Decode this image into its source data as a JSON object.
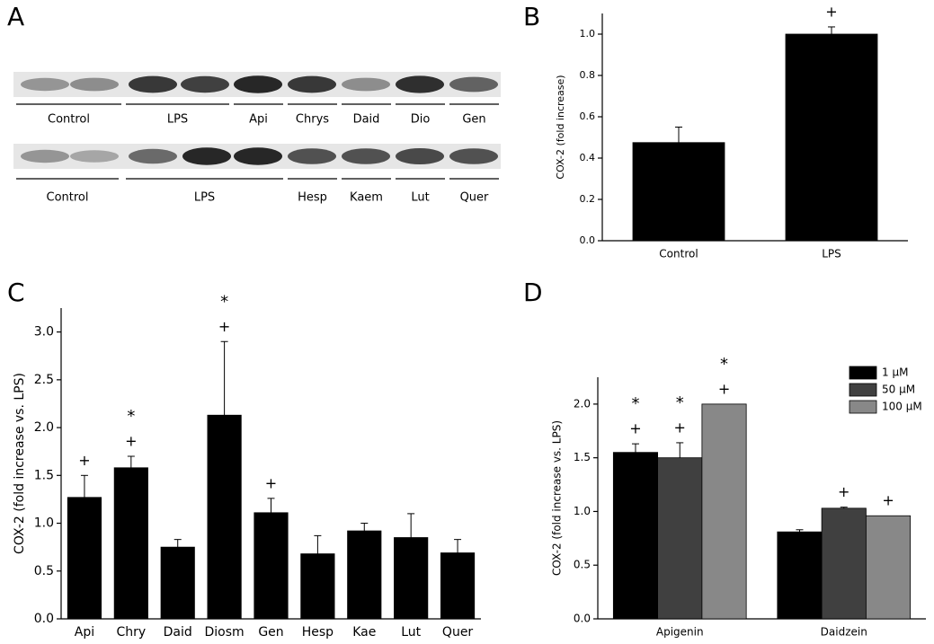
{
  "blot": {
    "panel": "A",
    "rows": [
      {
        "groups": [
          "Control",
          "LPS",
          "Api",
          "Chrys",
          "Daid",
          "Dio",
          "Gen"
        ]
      },
      {
        "groups": [
          "Control",
          "LPS",
          "Hesp",
          "Kaem",
          "Lut",
          "Quer"
        ]
      }
    ]
  },
  "chart_data": [
    {
      "type": "bar",
      "panel": "B",
      "ylabel": "COX-2 (fold increase)",
      "color": "#000000",
      "categories": [
        "Control",
        "LPS"
      ],
      "values": [
        0.475,
        1.0
      ],
      "errors": [
        0.075,
        0.035
      ],
      "plus": [
        null,
        "+"
      ],
      "star": [
        null,
        null
      ],
      "ylim": [
        0,
        1.1
      ],
      "yticks": [
        {
          "value": 0,
          "label": "0.0"
        },
        0.2,
        0.4,
        0.6,
        0.8,
        {
          "value": 1,
          "label": "1.0"
        }
      ]
    },
    {
      "type": "bar",
      "panel": "C",
      "ylabel": "COX-2 (fold increase vs. LPS)",
      "color": "#000000",
      "categories": [
        "Api",
        "Chry",
        "Daid",
        "Diosm",
        "Gen",
        "Hesp",
        "Kae",
        "Lut",
        "Quer"
      ],
      "values": [
        1.27,
        1.58,
        0.75,
        2.13,
        1.11,
        0.68,
        0.92,
        0.85,
        0.69
      ],
      "errors": [
        0.23,
        0.12,
        0.08,
        0.77,
        0.15,
        0.19,
        0.08,
        0.25,
        0.14
      ],
      "plus": [
        "+",
        "+",
        null,
        "+",
        "+",
        null,
        null,
        null,
        null
      ],
      "star": [
        null,
        "*",
        null,
        "*",
        null,
        null,
        null,
        null,
        null
      ],
      "ylim": [
        0,
        3.25
      ],
      "yticks": [
        {
          "value": 0,
          "label": "0.0"
        },
        0.5,
        {
          "value": 1,
          "label": "1.0"
        },
        1.5,
        {
          "value": 2,
          "label": "2.0"
        },
        2.5,
        {
          "value": 3,
          "label": "3.0"
        }
      ]
    },
    {
      "type": "bar",
      "panel": "D",
      "ylabel": "COX-2 (fold increase vs. LPS)",
      "legend": "upper right",
      "categories": [
        "Apigenin",
        "Daidzein"
      ],
      "series": [
        {
          "name": "1 μM",
          "color": "#000000",
          "values": [
            1.55,
            0.81
          ],
          "errors": [
            0.08,
            0.02
          ],
          "plus": [
            "+",
            null
          ],
          "star": [
            "*",
            null
          ]
        },
        {
          "name": "50 μM",
          "color": "#404040",
          "values": [
            1.5,
            1.03
          ],
          "errors": [
            0.14,
            0.01
          ],
          "plus": [
            "+",
            "+"
          ],
          "star": [
            "*",
            null
          ]
        },
        {
          "name": "100 μM",
          "color": "#888888",
          "values": [
            2.0,
            0.96
          ],
          "plus": [
            "+",
            "+"
          ],
          "star": [
            "*",
            null
          ]
        }
      ],
      "ylim": [
        0,
        2.25
      ],
      "yticks": [
        {
          "value": 0,
          "label": "0.0"
        },
        0.5,
        {
          "value": 1,
          "label": "1.0"
        },
        1.5,
        {
          "value": 2,
          "label": "2.0"
        }
      ]
    }
  ]
}
